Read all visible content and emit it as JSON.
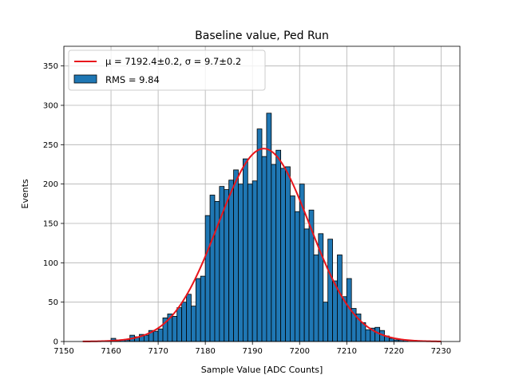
{
  "chart_data": {
    "type": "bar",
    "title": "Baseline value, Ped Run",
    "xlabel": "Sample Value [ADC Counts]",
    "ylabel": "Events",
    "xlim": [
      7150,
      7234
    ],
    "ylim": [
      0,
      375
    ],
    "xticks": [
      7150,
      7160,
      7170,
      7180,
      7190,
      7200,
      7210,
      7220,
      7230
    ],
    "yticks": [
      0,
      50,
      100,
      150,
      200,
      250,
      300,
      350
    ],
    "grid": true,
    "legend_position": "upper-left",
    "bin_width": 1,
    "bins": {
      "x": [
        7154,
        7155,
        7156,
        7157,
        7158,
        7159,
        7160,
        7161,
        7162,
        7163,
        7164,
        7165,
        7166,
        7167,
        7168,
        7169,
        7170,
        7171,
        7172,
        7173,
        7174,
        7175,
        7176,
        7177,
        7178,
        7179,
        7180,
        7181,
        7182,
        7183,
        7184,
        7185,
        7186,
        7187,
        7188,
        7189,
        7190,
        7191,
        7192,
        7193,
        7194,
        7195,
        7196,
        7197,
        7198,
        7199,
        7200,
        7201,
        7202,
        7203,
        7204,
        7205,
        7206,
        7207,
        7208,
        7209,
        7210,
        7211,
        7212,
        7213,
        7214,
        7215,
        7216,
        7217,
        7218,
        7219,
        7220,
        7221,
        7222,
        7223,
        7224,
        7225,
        7226,
        7227,
        7228,
        7229
      ],
      "counts": [
        0,
        0,
        0,
        0,
        0,
        1,
        4,
        2,
        2,
        2,
        8,
        6,
        9,
        8,
        14,
        13,
        16,
        30,
        35,
        32,
        43,
        50,
        60,
        45,
        80,
        83,
        160,
        186,
        178,
        197,
        193,
        205,
        218,
        200,
        232,
        200,
        204,
        270,
        235,
        290,
        225,
        243,
        220,
        222,
        185,
        165,
        200,
        143,
        167,
        110,
        137,
        50,
        130,
        77,
        110,
        57,
        80,
        42,
        35,
        24,
        15,
        17,
        18,
        14,
        7,
        4,
        2,
        2,
        2,
        0,
        0,
        0,
        0,
        0,
        0,
        0
      ],
      "color": "#1f77b4",
      "edge_color": "#000000"
    },
    "fit": {
      "type": "gaussian",
      "mu": 7192.4,
      "sigma": 9.7,
      "amplitude": 245,
      "x_range": [
        7154,
        7230
      ],
      "color": "#e8151b"
    },
    "legend": [
      {
        "label": "μ = 7192.4±0.2, σ = 9.7±0.2",
        "kind": "line",
        "color": "#e8151b"
      },
      {
        "label": "RMS = 9.84",
        "kind": "patch",
        "color": "#1f77b4"
      }
    ]
  }
}
